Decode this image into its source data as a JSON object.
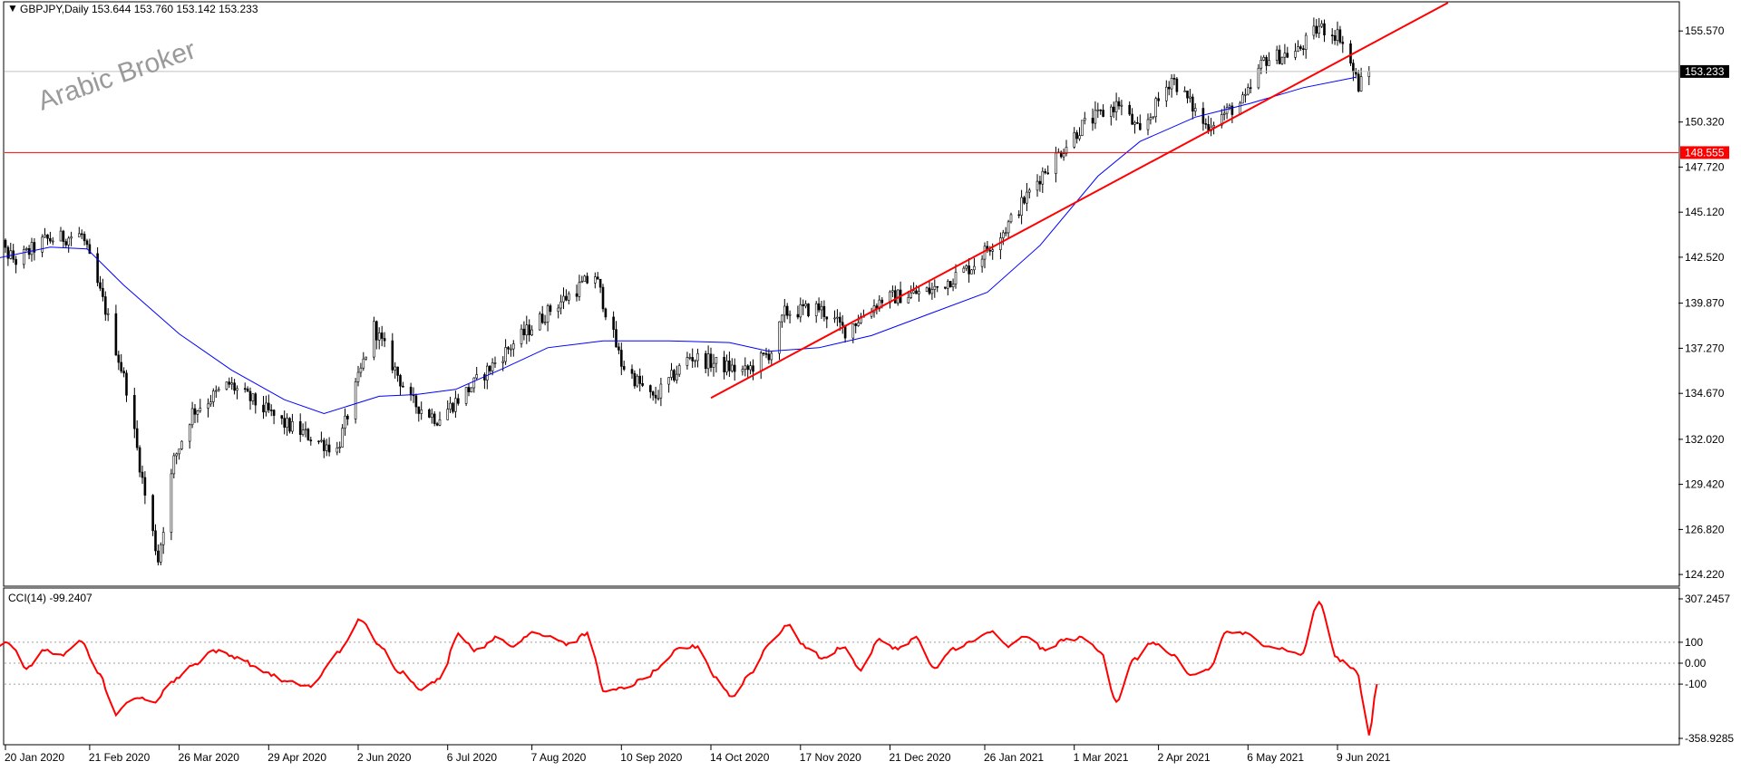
{
  "header": {
    "symbol_label": "GBPJPY,Daily",
    "ohlc": "153.644 153.760 153.142 153.233"
  },
  "watermark": "Arabic Broker",
  "colors": {
    "background": "#ffffff",
    "frame": "#000000",
    "candles": "#000000",
    "moving_average": "#0000ff",
    "trendline": "#ff0000",
    "support_line": "#ff0000",
    "cci_line": "#ff0000",
    "current_price_line": "#c0c0c0",
    "price_badge_current": "#000000",
    "price_badge_support": "#ff0000"
  },
  "chart_data": [
    {
      "type": "candlestick",
      "symbol": "GBPJPY",
      "timeframe": "Daily",
      "x_tick_labels": [
        "20 Jan 2020",
        "21 Feb 2020",
        "26 Mar 2020",
        "29 Apr 2020",
        "2 Jun 2020",
        "6 Jul 2020",
        "7 Aug 2020",
        "10 Sep 2020",
        "14 Oct 2020",
        "17 Nov 2020",
        "21 Dec 2020",
        "26 Jan 2021",
        "1 Mar 2021",
        "2 Apr 2021",
        "6 May 2021",
        "9 Jun 2021"
      ],
      "y_tick_labels": [
        "155.570",
        "150.320",
        "147.720",
        "145.120",
        "142.520",
        "139.870",
        "137.270",
        "134.670",
        "132.020",
        "129.420",
        "126.820",
        "124.220"
      ],
      "ylim": [
        123.6,
        157.2
      ],
      "current_price": {
        "label": "153.233",
        "value": 153.233
      },
      "horizontal_level": {
        "label": "148.555",
        "value": 148.555
      },
      "trendline": {
        "from": {
          "date": "2020-10-14",
          "value": 134.4
        },
        "to": {
          "date": "2021-07-21",
          "value": 157.2
        }
      },
      "moving_average_path": [
        [
          "2020-01-15",
          142.4
        ],
        [
          "2020-02-06",
          143.1
        ],
        [
          "2020-02-20",
          143.0
        ],
        [
          "2020-03-05",
          140.9
        ],
        [
          "2020-03-26",
          138.1
        ],
        [
          "2020-04-15",
          136.0
        ],
        [
          "2020-05-05",
          134.3
        ],
        [
          "2020-05-20",
          133.5
        ],
        [
          "2020-06-10",
          134.5
        ],
        [
          "2020-06-24",
          134.6
        ],
        [
          "2020-07-09",
          134.9
        ],
        [
          "2020-07-27",
          136.1
        ],
        [
          "2020-08-13",
          137.3
        ],
        [
          "2020-09-03",
          137.7
        ],
        [
          "2020-09-28",
          137.7
        ],
        [
          "2020-10-21",
          137.6
        ],
        [
          "2020-11-05",
          137.1
        ],
        [
          "2020-11-24",
          137.3
        ],
        [
          "2020-12-14",
          138.0
        ],
        [
          "2021-01-04",
          139.2
        ],
        [
          "2021-01-27",
          140.5
        ],
        [
          "2021-02-16",
          143.2
        ],
        [
          "2021-03-10",
          147.2
        ],
        [
          "2021-03-26",
          149.2
        ],
        [
          "2021-04-16",
          150.6
        ],
        [
          "2021-05-07",
          151.4
        ],
        [
          "2021-05-27",
          152.3
        ],
        [
          "2021-06-16",
          152.9
        ]
      ],
      "price_path": [
        [
          "2020-01-14",
          143.6
        ],
        [
          "2020-01-24",
          142.3
        ],
        [
          "2020-02-04",
          143.5
        ],
        [
          "2020-02-18",
          143.8
        ],
        [
          "2020-02-27",
          139.5
        ],
        [
          "2020-03-06",
          135.0
        ],
        [
          "2020-03-13",
          128.8
        ],
        [
          "2020-03-18",
          125.1
        ],
        [
          "2020-03-24",
          130.8
        ],
        [
          "2020-03-31",
          133.6
        ],
        [
          "2020-04-14",
          135.2
        ],
        [
          "2020-05-05",
          132.9
        ],
        [
          "2020-05-25",
          131.4
        ],
        [
          "2020-06-08",
          138.5
        ],
        [
          "2020-06-22",
          134.2
        ],
        [
          "2020-07-02",
          133.2
        ],
        [
          "2020-07-16",
          135.2
        ],
        [
          "2020-07-30",
          137.4
        ],
        [
          "2020-08-14",
          139.5
        ],
        [
          "2020-08-31",
          141.5
        ],
        [
          "2020-09-10",
          136.4
        ],
        [
          "2020-09-22",
          134.3
        ],
        [
          "2020-10-06",
          136.8
        ],
        [
          "2020-10-27",
          135.9
        ],
        [
          "2020-11-06",
          137.1
        ],
        [
          "2020-11-11",
          139.3
        ],
        [
          "2020-11-24",
          139.6
        ],
        [
          "2020-12-04",
          138.3
        ],
        [
          "2020-12-18",
          140.1
        ],
        [
          "2021-01-06",
          140.6
        ],
        [
          "2021-01-21",
          142.0
        ],
        [
          "2021-02-03",
          144.2
        ],
        [
          "2021-02-17",
          147.4
        ],
        [
          "2021-03-04",
          150.1
        ],
        [
          "2021-03-18",
          151.4
        ],
        [
          "2021-03-26",
          149.6
        ],
        [
          "2021-04-07",
          152.9
        ],
        [
          "2021-04-20",
          150.1
        ],
        [
          "2021-05-05",
          151.6
        ],
        [
          "2021-05-12",
          153.9
        ],
        [
          "2021-05-25",
          154.4
        ],
        [
          "2021-06-02",
          155.8
        ],
        [
          "2021-06-10",
          155.3
        ],
        [
          "2021-06-17",
          152.4
        ],
        [
          "2021-06-21",
          153.233
        ]
      ]
    },
    {
      "type": "line",
      "indicator": "CCI",
      "label": "CCI(14) -99.2407",
      "y_tick_labels": [
        "307.2457",
        "100",
        "0.00",
        "-100",
        "-358.9285"
      ],
      "ylim": [
        -358.9285,
        307.2457
      ],
      "levels": [
        100,
        0,
        -100
      ],
      "series": [
        {
          "name": "CCI(14)",
          "values": [
            [
              "2020-01-14",
              50
            ],
            [
              "2020-01-21",
              100
            ],
            [
              "2020-01-28",
              -20
            ],
            [
              "2020-02-04",
              60
            ],
            [
              "2020-02-11",
              40
            ],
            [
              "2020-02-18",
              110
            ],
            [
              "2020-02-24",
              -40
            ],
            [
              "2020-03-02",
              -240
            ],
            [
              "2020-03-09",
              -160
            ],
            [
              "2020-03-16",
              -190
            ],
            [
              "2020-03-23",
              -90
            ],
            [
              "2020-03-31",
              -10
            ],
            [
              "2020-04-08",
              60
            ],
            [
              "2020-04-17",
              30
            ],
            [
              "2020-04-27",
              -40
            ],
            [
              "2020-05-06",
              -90
            ],
            [
              "2020-05-15",
              -110
            ],
            [
              "2020-05-26",
              60
            ],
            [
              "2020-06-03",
              210
            ],
            [
              "2020-06-10",
              80
            ],
            [
              "2020-06-18",
              -40
            ],
            [
              "2020-06-26",
              -120
            ],
            [
              "2020-07-03",
              -80
            ],
            [
              "2020-07-10",
              140
            ],
            [
              "2020-07-17",
              60
            ],
            [
              "2020-07-24",
              120
            ],
            [
              "2020-07-31",
              80
            ],
            [
              "2020-08-07",
              150
            ],
            [
              "2020-08-14",
              130
            ],
            [
              "2020-08-21",
              90
            ],
            [
              "2020-08-28",
              140
            ],
            [
              "2020-09-04",
              -140
            ],
            [
              "2020-09-11",
              -120
            ],
            [
              "2020-09-18",
              -80
            ],
            [
              "2020-09-25",
              -20
            ],
            [
              "2020-10-02",
              70
            ],
            [
              "2020-10-09",
              80
            ],
            [
              "2020-10-16",
              -70
            ],
            [
              "2020-10-22",
              -160
            ],
            [
              "2020-10-29",
              -50
            ],
            [
              "2020-11-05",
              90
            ],
            [
              "2020-11-12",
              180
            ],
            [
              "2020-11-19",
              80
            ],
            [
              "2020-11-26",
              20
            ],
            [
              "2020-12-03",
              80
            ],
            [
              "2020-12-10",
              -30
            ],
            [
              "2020-12-17",
              110
            ],
            [
              "2020-12-24",
              70
            ],
            [
              "2020-12-31",
              120
            ],
            [
              "2021-01-07",
              -30
            ],
            [
              "2021-01-14",
              70
            ],
            [
              "2021-01-21",
              100
            ],
            [
              "2021-01-28",
              150
            ],
            [
              "2021-02-04",
              80
            ],
            [
              "2021-02-11",
              130
            ],
            [
              "2021-02-18",
              60
            ],
            [
              "2021-02-25",
              110
            ],
            [
              "2021-03-04",
              120
            ],
            [
              "2021-03-11",
              60
            ],
            [
              "2021-03-17",
              -180
            ],
            [
              "2021-03-24",
              20
            ],
            [
              "2021-03-31",
              100
            ],
            [
              "2021-04-07",
              40
            ],
            [
              "2021-04-14",
              -60
            ],
            [
              "2021-04-21",
              -30
            ],
            [
              "2021-04-28",
              150
            ],
            [
              "2021-05-05",
              140
            ],
            [
              "2021-05-12",
              90
            ],
            [
              "2021-05-19",
              70
            ],
            [
              "2021-05-26",
              40
            ],
            [
              "2021-06-02",
              290
            ],
            [
              "2021-06-09",
              20
            ],
            [
              "2021-06-16",
              -30
            ],
            [
              "2021-06-21",
              -340
            ],
            [
              "2021-06-24",
              -99.2407
            ]
          ]
        }
      ]
    }
  ]
}
